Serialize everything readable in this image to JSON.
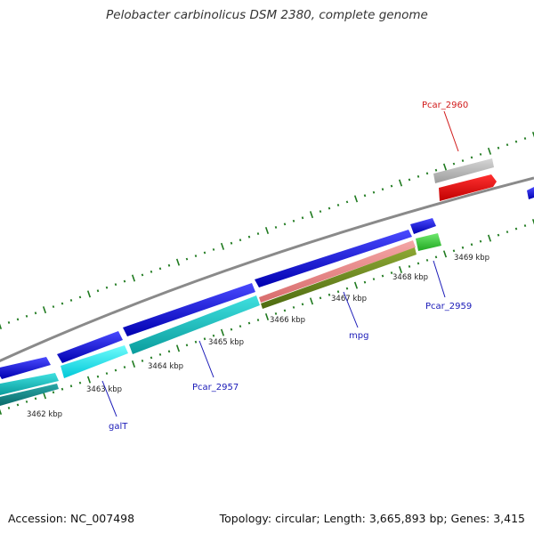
{
  "title": "Pelobacter carbinolicus DSM 2380, complete genome",
  "accession": "Accession: NC_007498",
  "summary": "Topology: circular; Length: 3,665,893 bp; Genes: 3,415",
  "colors": {
    "forward_cds": "#0b0bd6",
    "reverse_cds": "#13c7c7",
    "backbone": "#8a8a8a",
    "ticks": "#1f7a1f",
    "gene_label_default": "#1a1ab8",
    "gene_label_highlight": "#d11a1a"
  },
  "kbp_labels": [
    "3462 kbp",
    "3463 kbp",
    "3464 kbp",
    "3465 kbp",
    "3466 kbp",
    "3467 kbp",
    "3468 kbp",
    "3469 kbp"
  ],
  "gene_labels": [
    {
      "name": "Pcar_2960",
      "color": "#d11a1a"
    },
    {
      "name": "Pcar_2959",
      "color": "#1a1ab8"
    },
    {
      "name": "mpg",
      "color": "#1a1ab8"
    },
    {
      "name": "Pcar_2957",
      "color": "#1a1ab8"
    },
    {
      "name": "galT",
      "color": "#1a1ab8"
    }
  ]
}
